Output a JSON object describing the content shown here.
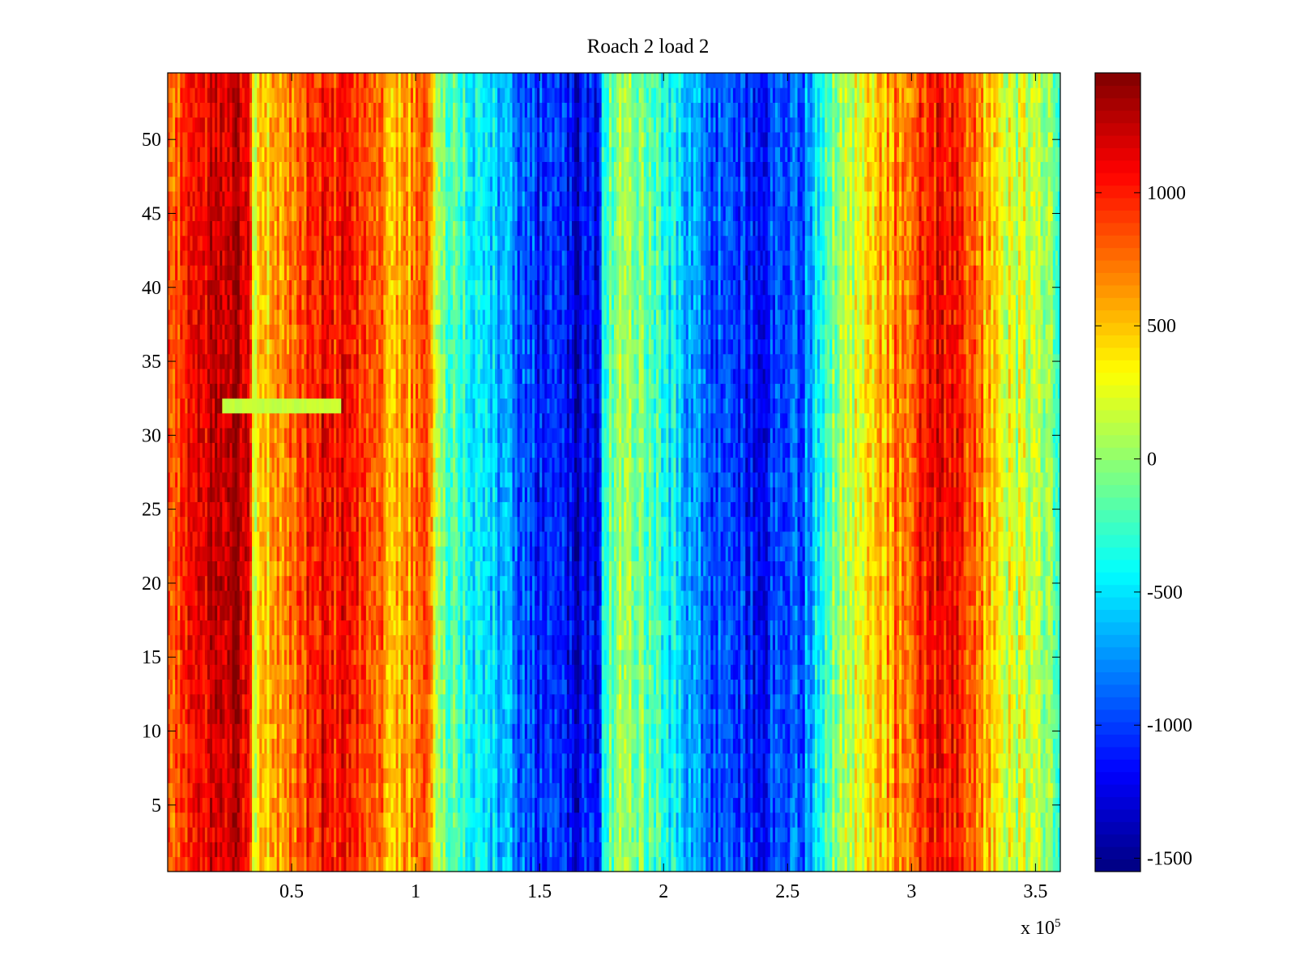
{
  "chart_data": {
    "type": "heatmap",
    "title": "Roach 2 load 2",
    "xlabel": "",
    "ylabel": "",
    "x_range": [
      0,
      360000
    ],
    "y_range": [
      0.5,
      54.5
    ],
    "x_ticks": [
      50000,
      100000,
      150000,
      200000,
      250000,
      300000,
      350000
    ],
    "x_tick_labels": [
      "0.5",
      "1",
      "1.5",
      "2",
      "2.5",
      "3",
      "3.5"
    ],
    "x_exponent_label": "x 10",
    "x_exponent_power": "5",
    "y_ticks": [
      5,
      10,
      15,
      20,
      25,
      30,
      35,
      40,
      45,
      50
    ],
    "y_tick_labels": [
      "5",
      "10",
      "15",
      "20",
      "25",
      "30",
      "35",
      "40",
      "45",
      "50"
    ],
    "rows": 54,
    "colormap": "jet",
    "colorbar": {
      "range": [
        -1550,
        1450
      ],
      "ticks": [
        1000,
        500,
        0,
        -500,
        -1000,
        -1500
      ],
      "tick_labels": [
        "1000",
        "500",
        "0",
        "-500",
        "-1000",
        "-1500"
      ]
    },
    "column_profile": {
      "x": [
        0,
        20000,
        33000,
        34000,
        45000,
        60000,
        70000,
        95000,
        105000,
        112000,
        130000,
        150000,
        165000,
        174000,
        176000,
        185000,
        200000,
        215000,
        235000,
        255000,
        268000,
        280000,
        295000,
        310000,
        320000,
        335000,
        345000,
        360000
      ],
      "value": [
        750,
        1100,
        1200,
        250,
        550,
        1000,
        950,
        550,
        650,
        -100,
        -550,
        -1050,
        -1150,
        -1200,
        -200,
        50,
        -300,
        -750,
        -1050,
        -900,
        -100,
        300,
        700,
        1050,
        900,
        300,
        150,
        -150
      ]
    },
    "strip_anomaly": {
      "row": 32,
      "x_start": 22000,
      "x_end": 70000,
      "value": 150
    },
    "bright_gap_rows": {
      "x_range": [
        20000,
        33000
      ],
      "rows": [
        32
      ]
    }
  },
  "colors": {
    "frame": "#000000",
    "background": "#ffffff"
  }
}
